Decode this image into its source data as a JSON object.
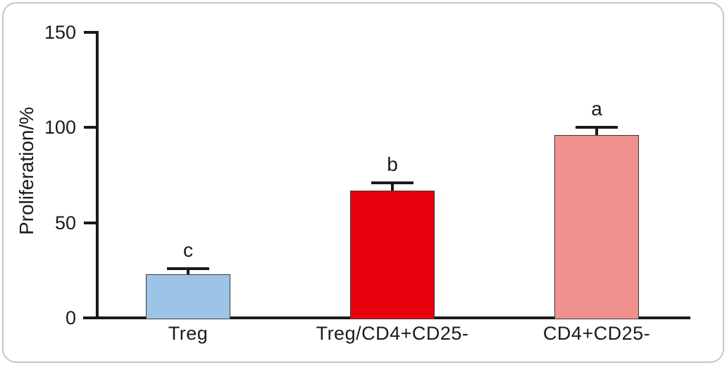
{
  "figure": {
    "background_color": "#ffffff",
    "frame_border_color": "#c7c5c3",
    "axis_color": "#1a1a1a",
    "text_color": "#1a1a1a"
  },
  "chart_data": {
    "type": "bar",
    "title": "",
    "xlabel": "",
    "ylabel": "Proliferation/%",
    "ylim": [
      0,
      150
    ],
    "yticks": [
      0,
      50,
      100,
      150
    ],
    "grid": "off",
    "legend": "none",
    "categories": [
      "Treg",
      "Treg/CD4+CD25-",
      "CD4+CD25-"
    ],
    "values": [
      23,
      67,
      96
    ],
    "errors_plus": [
      3,
      4,
      4
    ],
    "sig_letters": [
      "c",
      "b",
      "a"
    ],
    "bar_colors": [
      "#9CC4E7",
      "#E8000D",
      "#F0918F"
    ]
  }
}
